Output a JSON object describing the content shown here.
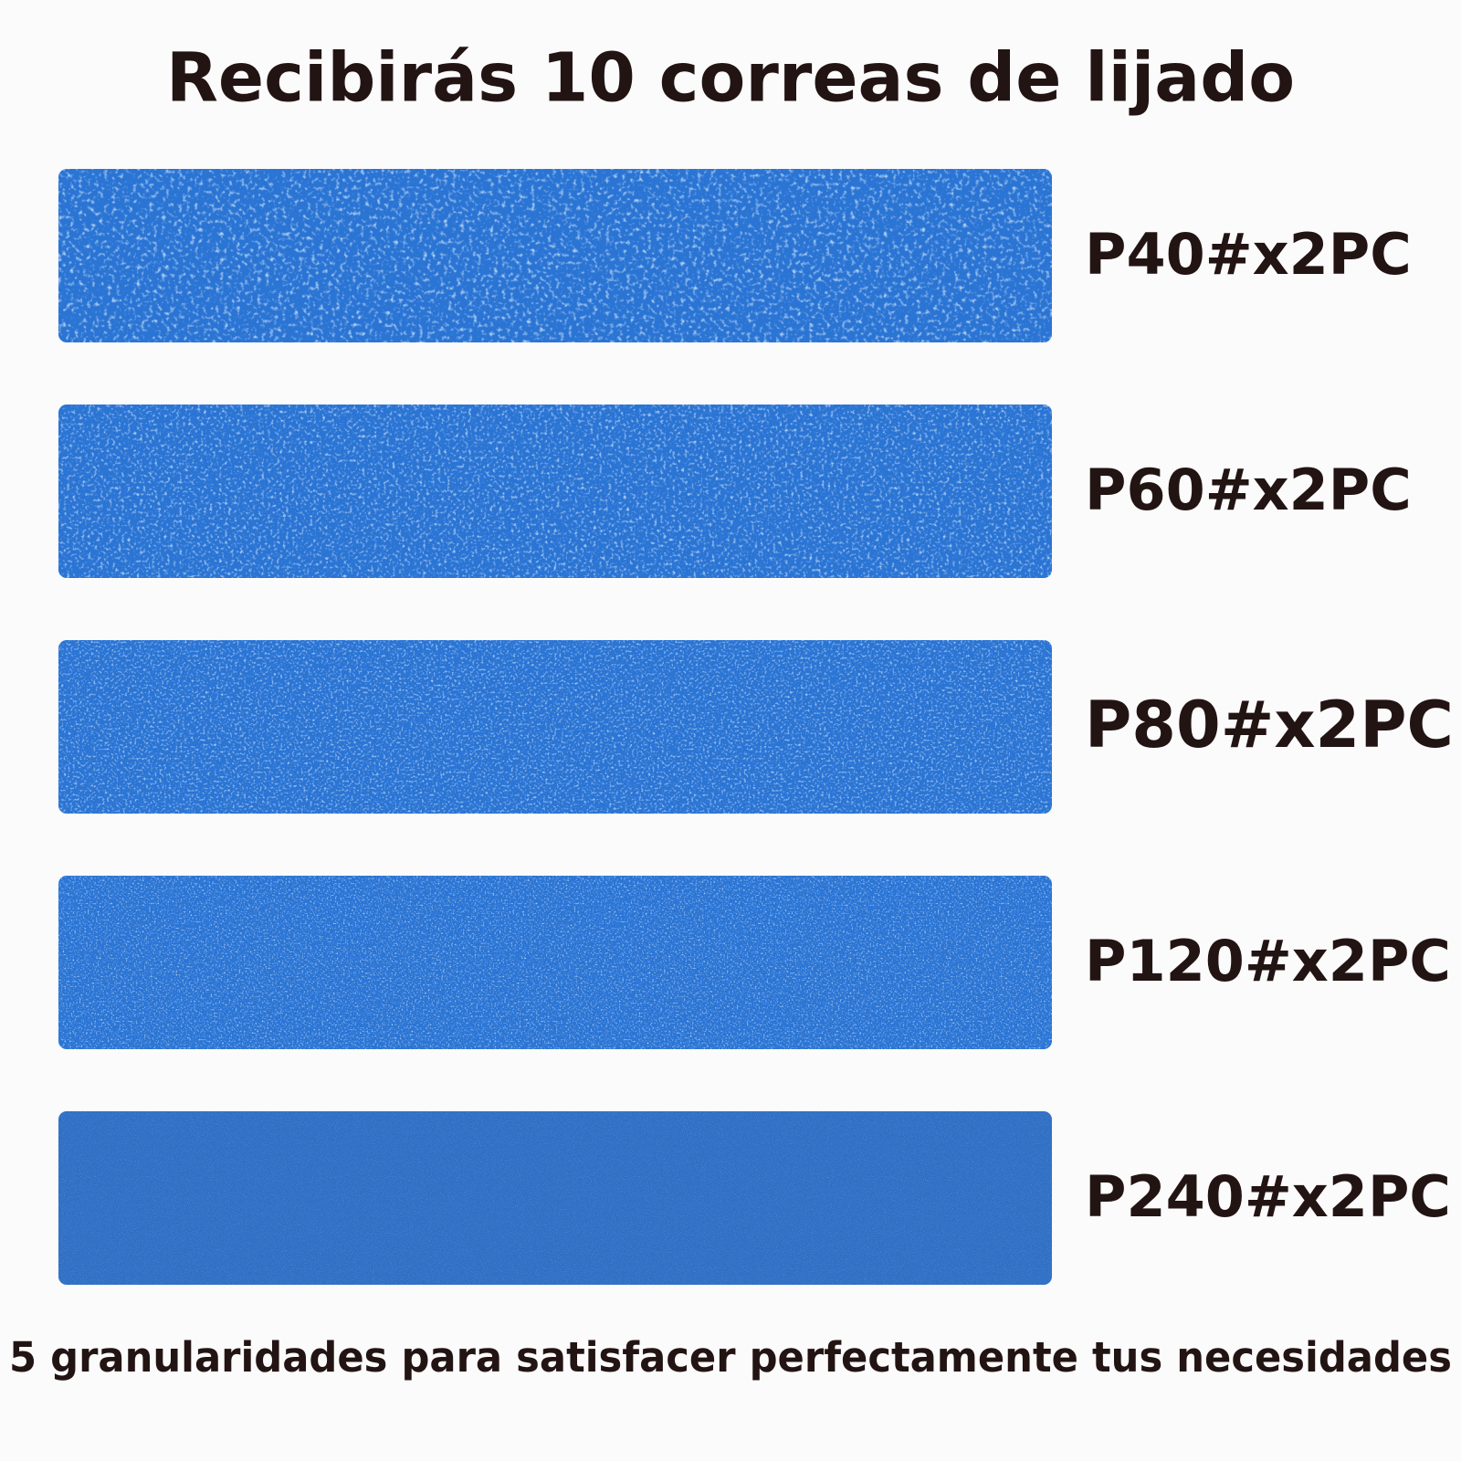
{
  "header": {
    "title": "Recibirás 10 correas de lijado"
  },
  "belts": [
    {
      "label": "P40#x2PC"
    },
    {
      "label": "P60#x2PC"
    },
    {
      "label": "P80#x2PC"
    },
    {
      "label": "P120#x2PC"
    },
    {
      "label": "P240#x2PC"
    }
  ],
  "footer": {
    "text": "5 granularidades para satisfacer perfectamente tus necesidades"
  }
}
